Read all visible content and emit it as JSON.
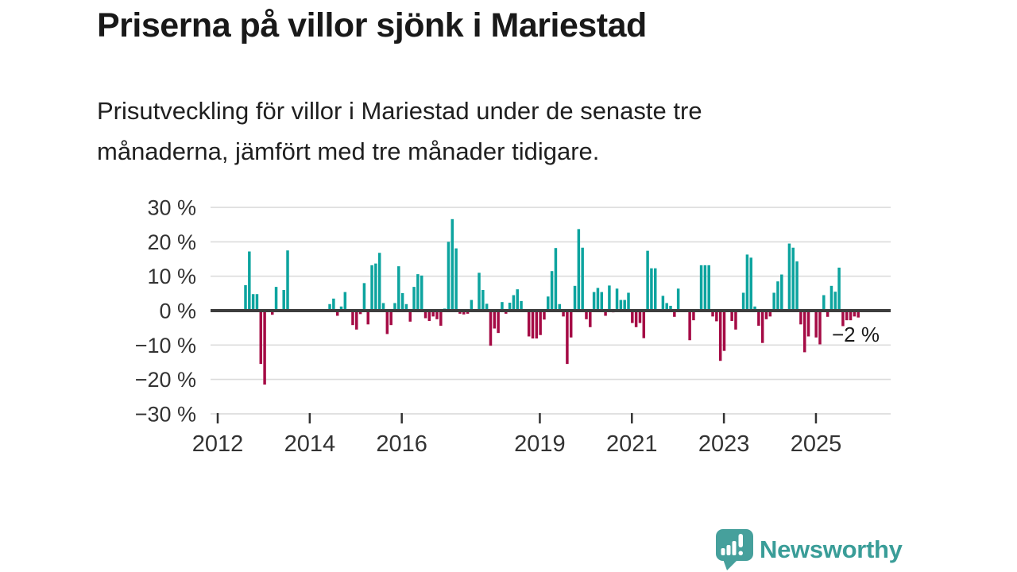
{
  "chart_data": {
    "type": "bar",
    "title": "Priserna på villor sjönk i Mariestad",
    "subtitle": "Prisutveckling för villor i Mariestad under de senaste tre\nmånaderna, jämfört med tre månader tidigare.",
    "xlabel": "",
    "ylabel": "",
    "unit": "%",
    "x_frequency": "monthly",
    "x_start": "2012-07",
    "x_end": "2025-11",
    "ylim": [
      -30,
      30
    ],
    "grid": true,
    "legend": "none",
    "ytick_values": [
      30,
      20,
      10,
      0,
      -10,
      -20,
      -30
    ],
    "ytick_labels": [
      "30 %",
      "20 %",
      "10 %",
      "0 %",
      "−10 %",
      "−20 %",
      "−30 %"
    ],
    "xtick_years": [
      2012,
      2014,
      2016,
      2019,
      2021,
      2023,
      2025
    ],
    "xtick_labels": [
      "2012",
      "2014",
      "2016",
      "2019",
      "2021",
      "2023",
      "2025"
    ],
    "annotation": {
      "text": "−2 %",
      "target": "last-bar"
    },
    "colors": {
      "positive": "#0da49f",
      "negative": "#a50b45",
      "axis": "#3d3d3d",
      "grid": "#dcdcdc",
      "tick_label": "#333333",
      "annotation_text": "#1a1a1a",
      "annotation_halo": "#ffffff"
    },
    "values": [
      7.4,
      17.2,
      4.8,
      4.8,
      -15.5,
      -21.5,
      0,
      -1.2,
      6.9,
      0,
      6.0,
      17.5,
      0,
      0,
      0,
      0,
      0,
      0,
      0,
      0,
      0,
      0,
      1.9,
      3.5,
      -1.5,
      1.2,
      5.4,
      0,
      -4.2,
      -5.5,
      -1.0,
      8.0,
      -4.0,
      13.2,
      13.7,
      16.8,
      2.2,
      -6.8,
      -4.2,
      2.2,
      12.9,
      5.1,
      1.9,
      -3.2,
      6.9,
      10.6,
      10.2,
      -2.2,
      -3.0,
      -1.7,
      -2.5,
      -4.4,
      0.6,
      20.0,
      26.6,
      18.1,
      -0.9,
      -1.1,
      -0.9,
      3.1,
      0,
      11.0,
      6.0,
      2.0,
      -10.2,
      -5.2,
      -6.5,
      2.5,
      -0.9,
      2.3,
      4.5,
      6.2,
      2.8,
      0,
      -7.5,
      -8.1,
      -8.1,
      -7.1,
      -2.6,
      4.1,
      11.5,
      18.2,
      1.9,
      -1.7,
      -15.5,
      -7.8,
      7.2,
      23.7,
      18.3,
      -2.5,
      -4.8,
      5.4,
      6.6,
      5.4,
      -1.5,
      7.3,
      -0.5,
      6.4,
      3.1,
      3.1,
      5.2,
      -3.6,
      -4.8,
      -3.6,
      -8.0,
      17.4,
      12.3,
      12.3,
      0,
      4.3,
      2.2,
      1.4,
      -1.8,
      6.4,
      0,
      0,
      -8.6,
      -2.8,
      0,
      13.2,
      13.2,
      13.2,
      -1.7,
      -3.1,
      -14.6,
      -11.7,
      0,
      -3.0,
      -5.5,
      0,
      5.2,
      16.3,
      15.4,
      1.2,
      -4.4,
      -9.4,
      -2.5,
      -1.7,
      5.2,
      8.5,
      10.5,
      0,
      19.5,
      18.3,
      14.3,
      -4.0,
      -12.1,
      -7.5,
      0,
      -7.8,
      -9.8,
      4.5,
      -1.8,
      7.2,
      5.5,
      12.5,
      -4.5,
      -2.8,
      -2.8,
      -1.7,
      -2.0
    ]
  },
  "branding": {
    "logo_text": "Newsworthy",
    "logo_icon": "bar-chart-speech-bubble-icon",
    "logo_color": "#3a9d98",
    "logo_bubble_color": "#46a09c"
  }
}
